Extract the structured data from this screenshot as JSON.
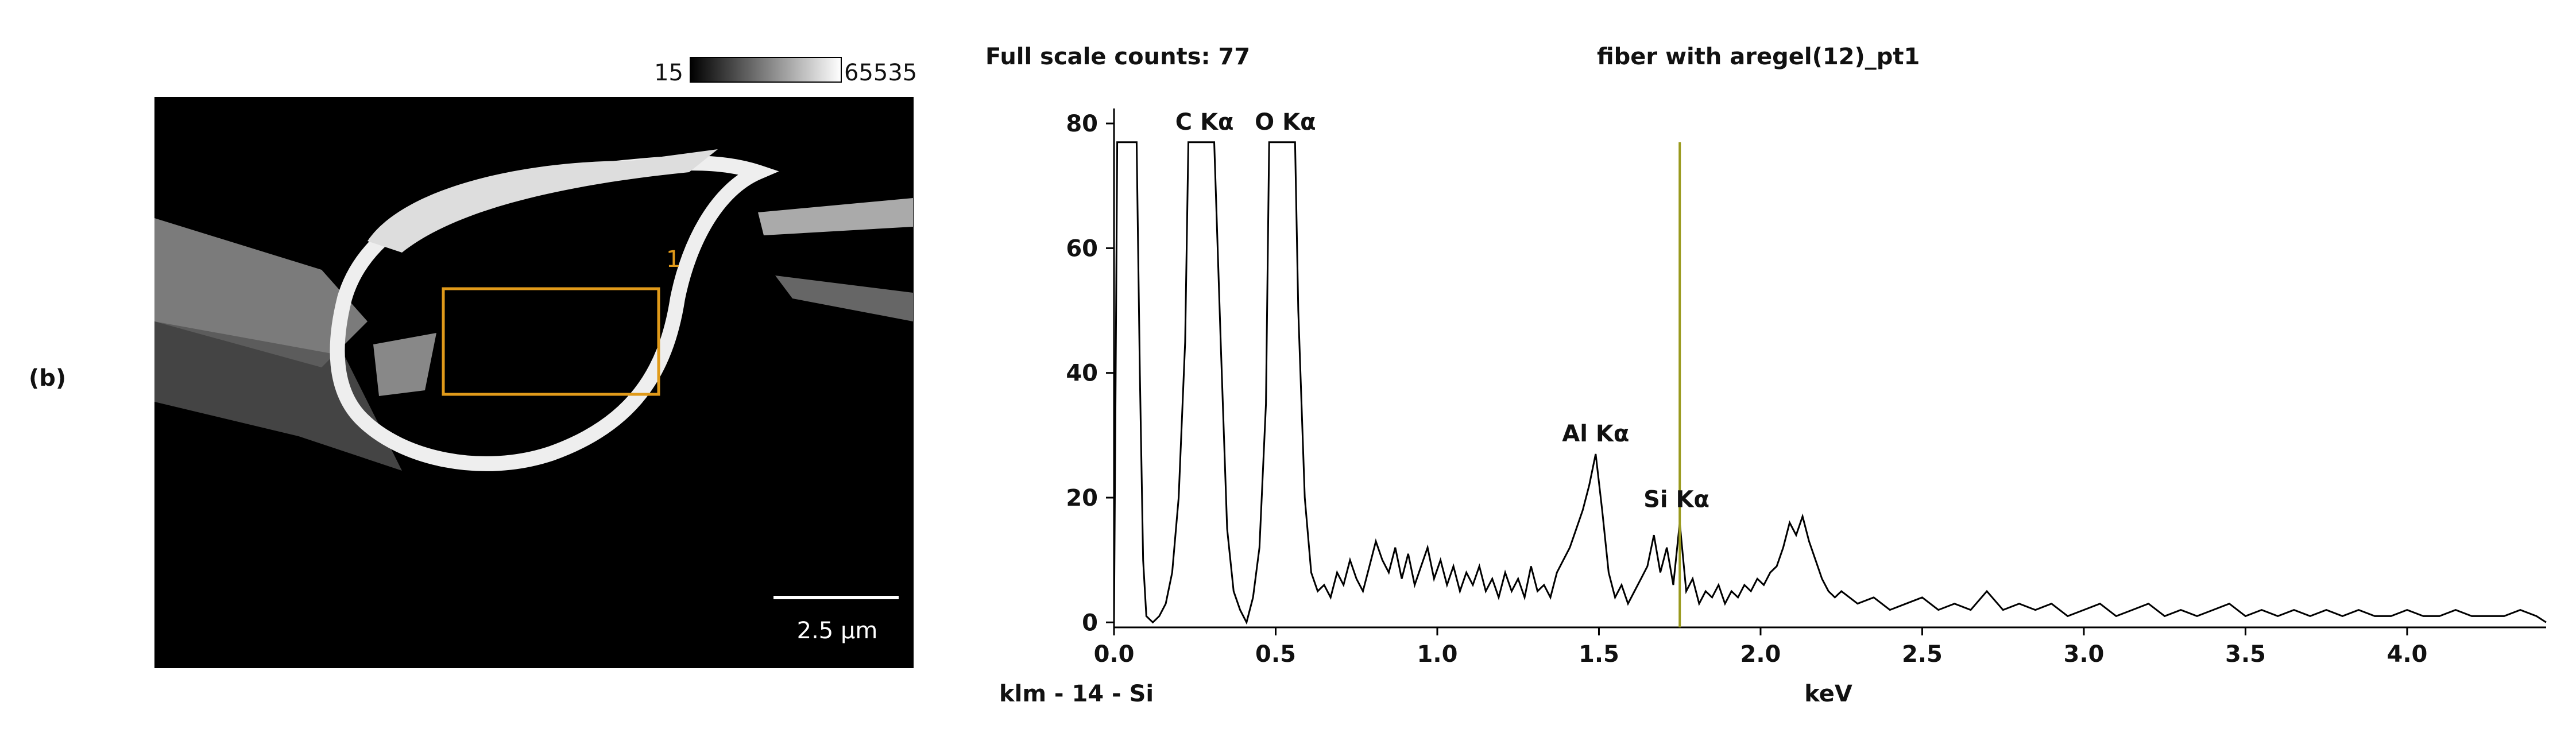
{
  "panel_label": "(b)",
  "image": {
    "scale_min": 15,
    "scale_max": 65535,
    "region_label": "1",
    "scale_bar": "2.5 µm"
  },
  "chart_data": {
    "type": "line",
    "title": "fiber with aregel(12)_pt1",
    "subtitle": "Full scale counts: 77",
    "x_label": "keV",
    "footer_left": "klm - 14 - Si",
    "color": "#000000",
    "xlim": [
      0,
      4.43
    ],
    "ylim": [
      -0.8,
      82.4
    ],
    "xticks": [
      {
        "value": 0,
        "label": "0.0"
      },
      {
        "value": 0.5,
        "label": "0.5"
      },
      {
        "value": 1,
        "label": "1.0"
      },
      {
        "value": 1.5,
        "label": "1.5"
      },
      {
        "value": 2,
        "label": "2.0"
      },
      {
        "value": 2.5,
        "label": "2.5"
      },
      {
        "value": 3,
        "label": "3.0"
      },
      {
        "value": 3.5,
        "label": "3.5"
      },
      {
        "value": 4,
        "label": "4.0"
      }
    ],
    "yticks": [
      0,
      20,
      40,
      60,
      80
    ],
    "marker": {
      "x": 1.75,
      "top": 77,
      "color": "#9a9a1e"
    },
    "annotations": [
      {
        "text": "C Kα",
        "x": 0.28,
        "y": 79
      },
      {
        "text": "O Kα",
        "x": 0.53,
        "y": 79
      },
      {
        "text": "Al Kα",
        "x": 1.49,
        "y": 29
      },
      {
        "text": "Si Kα",
        "x": 1.74,
        "y": 18.5
      }
    ],
    "x": [
      0,
      0.01,
      0.07,
      0.08,
      0.09,
      0.1,
      0.12,
      0.14,
      0.16,
      0.18,
      0.2,
      0.22,
      0.23,
      0.31,
      0.33,
      0.35,
      0.37,
      0.39,
      0.41,
      0.43,
      0.45,
      0.47,
      0.48,
      0.56,
      0.57,
      0.59,
      0.61,
      0.63,
      0.65,
      0.67,
      0.69,
      0.71,
      0.73,
      0.75,
      0.77,
      0.79,
      0.81,
      0.83,
      0.85,
      0.87,
      0.89,
      0.91,
      0.93,
      0.95,
      0.97,
      0.99,
      1.01,
      1.03,
      1.05,
      1.07,
      1.09,
      1.11,
      1.13,
      1.15,
      1.17,
      1.19,
      1.21,
      1.23,
      1.25,
      1.27,
      1.29,
      1.31,
      1.33,
      1.35,
      1.37,
      1.39,
      1.41,
      1.43,
      1.45,
      1.47,
      1.49,
      1.51,
      1.53,
      1.55,
      1.57,
      1.59,
      1.61,
      1.63,
      1.65,
      1.67,
      1.69,
      1.71,
      1.73,
      1.75,
      1.77,
      1.79,
      1.81,
      1.83,
      1.85,
      1.87,
      1.89,
      1.91,
      1.93,
      1.95,
      1.97,
      1.99,
      2.01,
      2.03,
      2.05,
      2.07,
      2.09,
      2.11,
      2.13,
      2.15,
      2.17,
      2.19,
      2.21,
      2.23,
      2.25,
      2.3,
      2.35,
      2.4,
      2.45,
      2.5,
      2.55,
      2.6,
      2.65,
      2.7,
      2.75,
      2.8,
      2.85,
      2.9,
      2.95,
      3,
      3.05,
      3.1,
      3.15,
      3.2,
      3.25,
      3.3,
      3.35,
      3.4,
      3.45,
      3.5,
      3.55,
      3.6,
      3.65,
      3.7,
      3.75,
      3.8,
      3.85,
      3.9,
      3.95,
      4,
      4.05,
      4.1,
      4.15,
      4.2,
      4.25,
      4.3,
      4.35,
      4.4,
      4.43
    ],
    "values": [
      0,
      77,
      77,
      40,
      10,
      1,
      0,
      1,
      3,
      8,
      20,
      45,
      77,
      77,
      45,
      15,
      5,
      2,
      0,
      4,
      12,
      35,
      77,
      77,
      50,
      20,
      8,
      5,
      6,
      4,
      8,
      6,
      10,
      7,
      5,
      9,
      13,
      10,
      8,
      12,
      7,
      11,
      6,
      9,
      12,
      7,
      10,
      6,
      9,
      5,
      8,
      6,
      9,
      5,
      7,
      4,
      8,
      5,
      7,
      4,
      9,
      5,
      6,
      4,
      8,
      10,
      12,
      15,
      18,
      22,
      27,
      18,
      8,
      4,
      6,
      3,
      5,
      7,
      9,
      14,
      8,
      12,
      6,
      16,
      5,
      7,
      3,
      5,
      4,
      6,
      3,
      5,
      4,
      6,
      5,
      7,
      6,
      8,
      9,
      12,
      16,
      14,
      17,
      13,
      10,
      7,
      5,
      4,
      5,
      3,
      4,
      2,
      3,
      4,
      2,
      3,
      2,
      5,
      2,
      3,
      2,
      3,
      1,
      2,
      3,
      1,
      2,
      3,
      1,
      2,
      1,
      2,
      3,
      1,
      2,
      1,
      2,
      1,
      2,
      1,
      2,
      1,
      1,
      2,
      1,
      1,
      2,
      1,
      1,
      1,
      2,
      1,
      0
    ]
  }
}
